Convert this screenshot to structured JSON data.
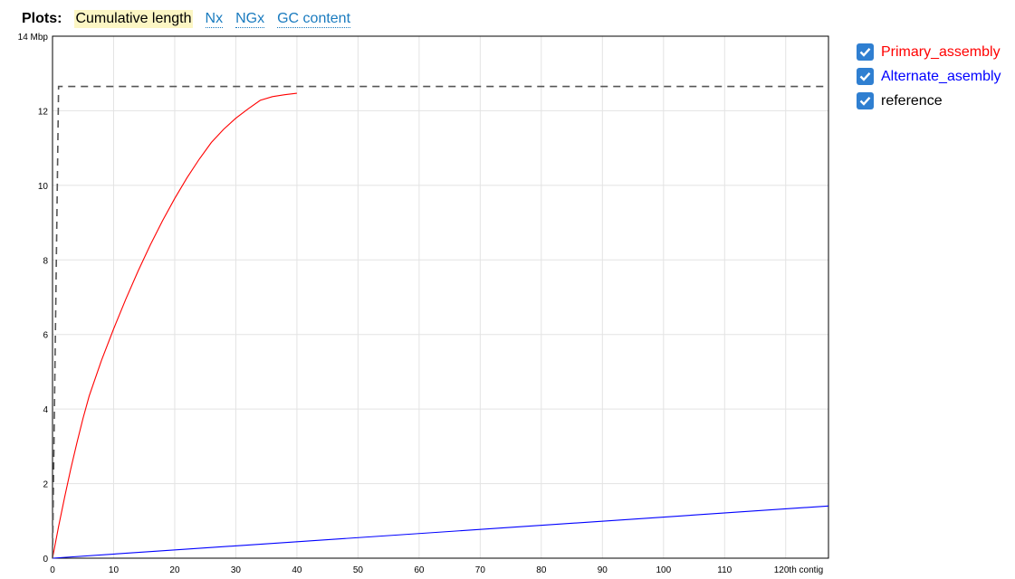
{
  "header": {
    "plots_label": "Plots:",
    "tabs": [
      {
        "label": "Cumulative length",
        "selected": true
      },
      {
        "label": "Nx",
        "selected": false
      },
      {
        "label": "NGx",
        "selected": false
      },
      {
        "label": "GC content",
        "selected": false
      }
    ]
  },
  "legend": {
    "items": [
      {
        "label": "Primary_assembly",
        "color": "#ff0000",
        "checked": true
      },
      {
        "label": "Alternate_asembly",
        "color": "#0000ff",
        "checked": true
      },
      {
        "label": "reference",
        "color": "#000000",
        "checked": true
      }
    ]
  },
  "chart_data": {
    "type": "line",
    "title": "",
    "xlabel": "",
    "ylabel": "",
    "x_unit_label": "th contig",
    "y_unit_label": "Mbp",
    "xlim": [
      0,
      127
    ],
    "ylim": [
      0,
      14
    ],
    "x_ticks": [
      0,
      10,
      20,
      30,
      40,
      50,
      60,
      70,
      80,
      90,
      100,
      110,
      120
    ],
    "y_ticks": [
      0,
      2,
      4,
      6,
      8,
      10,
      12,
      14
    ],
    "x_tick_labels": [
      "0",
      "10",
      "20",
      "30",
      "40",
      "50",
      "60",
      "70",
      "80",
      "90",
      "100",
      "110",
      "120"
    ],
    "y_tick_labels": [
      "0",
      "2",
      "4",
      "6",
      "8",
      "10",
      "12",
      "14"
    ],
    "grid": true,
    "series": [
      {
        "name": "Primary_assembly",
        "color": "#ff0000",
        "dashed": false,
        "x": [
          0,
          1,
          2,
          3,
          4,
          5,
          6,
          8,
          10,
          12,
          14,
          16,
          18,
          20,
          22,
          24,
          26,
          28,
          30,
          32,
          34,
          36,
          38,
          40
        ],
        "y": [
          0,
          0.85,
          1.65,
          2.4,
          3.1,
          3.75,
          4.35,
          5.3,
          6.15,
          6.95,
          7.7,
          8.4,
          9.05,
          9.65,
          10.2,
          10.7,
          11.15,
          11.5,
          11.8,
          12.05,
          12.28,
          12.38,
          12.43,
          12.47
        ]
      },
      {
        "name": "Alternate_asembly",
        "color": "#0000ff",
        "dashed": false,
        "x": [
          0,
          127
        ],
        "y": [
          0,
          1.4
        ]
      },
      {
        "name": "reference",
        "color": "#555555",
        "dashed": true,
        "x": [
          0,
          1,
          127
        ],
        "y": [
          0,
          12.65,
          12.65
        ]
      }
    ]
  }
}
